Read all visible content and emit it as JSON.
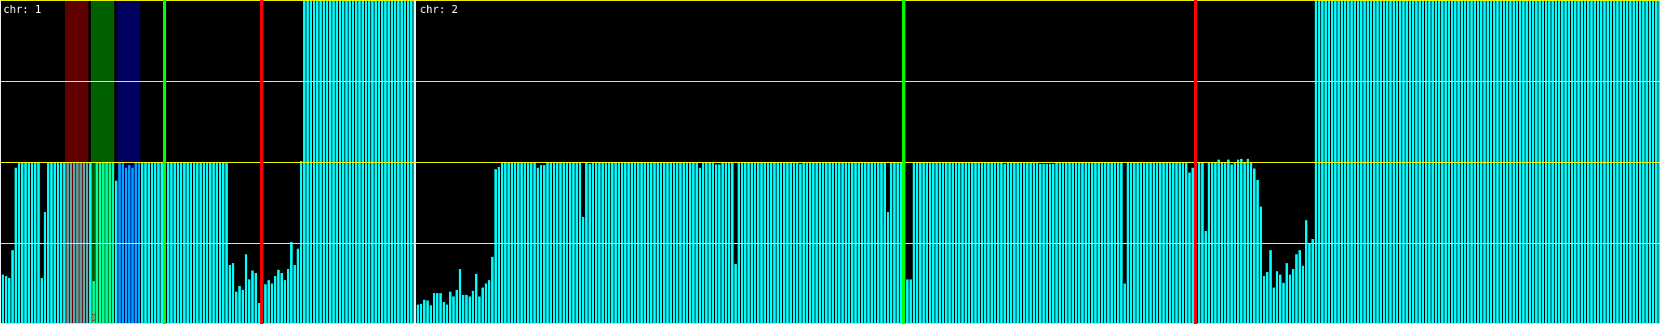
{
  "chart_data": {
    "type": "bar",
    "ylim": [
      0,
      4
    ],
    "gridlines_y": [
      0,
      1,
      2,
      3,
      4
    ],
    "grid": true,
    "colors": {
      "bar": "#00ffff",
      "grid": "#ffff00",
      "divider": "#ffffff",
      "background": "#000000"
    },
    "chromosomes": [
      {
        "label": "chr: 1",
        "values": [
          0.61,
          0.59,
          0.57,
          0.91,
          1.93,
          2,
          2,
          2,
          2,
          2,
          2,
          2,
          0.57,
          1.38,
          2,
          2,
          2,
          2,
          2,
          2,
          2,
          2,
          2,
          2,
          2,
          2,
          2,
          2,
          0.53,
          2,
          2,
          2,
          2,
          2,
          2,
          1.77,
          2,
          2,
          1.93,
          1.96,
          1.93,
          2,
          2,
          2,
          2,
          2,
          2,
          2,
          2,
          2,
          2,
          2,
          2,
          2,
          2,
          2,
          2,
          2,
          2,
          2,
          2,
          2,
          2,
          2,
          2,
          2,
          2,
          2,
          2,
          2,
          0.73,
          0.75,
          0.4,
          0.47,
          0.42,
          0.86,
          0.55,
          0.66,
          0.63,
          0.26,
          0.4,
          0.49,
          0.54,
          0.5,
          0.59,
          0.67,
          0.63,
          0.54,
          0.68,
          1.01,
          0.73,
          0.93,
          2.01,
          4,
          4,
          4,
          4,
          4,
          4,
          4,
          4,
          4,
          4,
          4,
          4,
          4,
          4,
          4,
          4,
          4,
          4,
          4,
          4,
          4,
          4,
          4,
          4,
          4,
          4,
          4,
          4,
          4,
          4,
          4,
          4,
          4,
          4,
          4
        ],
        "bands": [
          {
            "start_bin": 19.5,
            "end_bin": 26.75,
            "color": "#ff0000"
          },
          {
            "start_bin": 27.5,
            "end_bin": 34.75,
            "color": "#00ff00"
          },
          {
            "start_bin": 35.5,
            "end_bin": 42.75,
            "color": "#0000ff"
          }
        ],
        "markers": [
          {
            "bin": 50,
            "color": "#00ff00"
          },
          {
            "bin": 80,
            "color": "#ff0000"
          }
        ],
        "annotation": {
          "text": "0",
          "bin": 28,
          "color": "#ff0000"
        }
      },
      {
        "label": "chr: 2",
        "values": [
          0.24,
          0.25,
          0.3,
          0.29,
          0.23,
          0.38,
          0.38,
          0.38,
          0.27,
          0.24,
          0.4,
          0.34,
          0.42,
          0.68,
          0.36,
          0.36,
          0.34,
          0.41,
          0.62,
          0.34,
          0.45,
          0.5,
          0.54,
          0.83,
          1.91,
          1.94,
          2,
          2,
          2,
          2,
          2,
          2,
          2,
          2,
          2,
          2,
          2,
          1.93,
          1.96,
          1.96,
          2,
          2,
          2,
          2,
          2,
          2,
          2,
          2,
          2,
          2,
          2,
          1.32,
          2,
          1.98,
          2,
          2,
          2,
          2,
          2,
          2,
          2,
          2,
          2,
          2,
          2,
          2,
          2,
          2,
          2,
          2,
          2,
          2,
          2,
          2,
          2,
          2,
          2,
          2,
          2,
          2,
          2,
          2,
          2,
          2,
          2,
          2,
          2,
          1.93,
          2,
          2,
          2,
          2,
          1.97,
          1.97,
          2,
          2,
          2,
          2,
          0.74,
          2,
          2,
          2,
          2,
          2,
          2,
          2,
          2,
          2,
          2,
          2,
          2,
          2,
          2,
          2,
          2,
          2,
          2,
          2,
          1.98,
          2,
          2,
          2,
          2,
          2,
          2,
          2,
          2,
          2,
          2,
          2,
          2,
          2,
          2,
          2,
          2,
          2,
          2,
          2,
          2,
          2,
          2,
          2,
          2,
          2,
          2,
          1.38,
          2,
          2,
          2,
          2,
          2,
          0.55,
          0.55,
          2,
          2,
          2,
          2,
          2,
          2,
          2,
          2,
          2,
          2,
          2,
          2,
          2,
          2,
          2,
          2,
          2,
          2,
          2,
          2,
          2,
          2,
          2,
          2,
          2,
          2,
          2,
          2,
          1.98,
          2,
          2,
          2,
          2,
          2,
          2,
          2,
          2,
          2,
          2,
          1.98,
          1.98,
          1.98,
          1.98,
          1.98,
          2,
          2,
          2,
          2,
          2,
          2,
          2,
          2,
          2,
          2,
          2,
          2,
          2,
          2,
          2,
          2,
          2,
          2,
          2,
          2,
          2,
          0.5,
          2,
          2,
          2,
          2,
          2,
          2,
          2,
          2,
          2,
          2,
          2,
          2,
          2,
          2,
          2,
          2,
          2,
          2,
          2,
          1.87,
          1.93,
          2,
          2,
          2,
          1.15,
          2,
          2,
          2,
          2.03,
          2,
          2,
          2.03,
          1.97,
          2,
          2.03,
          2.04,
          2,
          2.04,
          2,
          1.92,
          1.78,
          1.45,
          0.59,
          0.64,
          0.91,
          0.45,
          0.65,
          0.61,
          0.51,
          0.75,
          0.61,
          0.68,
          0.86,
          0.91,
          0.72,
          1.28,
          1.0,
          1.05,
          4,
          4,
          4,
          4,
          4,
          4,
          4,
          4,
          4,
          4,
          4,
          4,
          4,
          4,
          4,
          4,
          4,
          4,
          4,
          4,
          4,
          4,
          4,
          4,
          4,
          4,
          4,
          4,
          4,
          4,
          4,
          4,
          4,
          4,
          4,
          4,
          4,
          4,
          4,
          4,
          4,
          4,
          4,
          4,
          4,
          4,
          4,
          4,
          4,
          4,
          4,
          4,
          4,
          4,
          4,
          4,
          4,
          4,
          4,
          4,
          4,
          4,
          4,
          4,
          4,
          4,
          4,
          4,
          4,
          4,
          4,
          4,
          4,
          4,
          4,
          4,
          4,
          4,
          4,
          4,
          4,
          4,
          4,
          4,
          4,
          4,
          4,
          4,
          4,
          4,
          4,
          4,
          4,
          4,
          4,
          4,
          4,
          4,
          4,
          4,
          4,
          4,
          4,
          4,
          4,
          4,
          4
        ],
        "bands": [],
        "markers": [
          {
            "bin": 150,
            "color": "#00ff00"
          },
          {
            "bin": 240,
            "color": "#ff0000"
          }
        ]
      }
    ]
  }
}
